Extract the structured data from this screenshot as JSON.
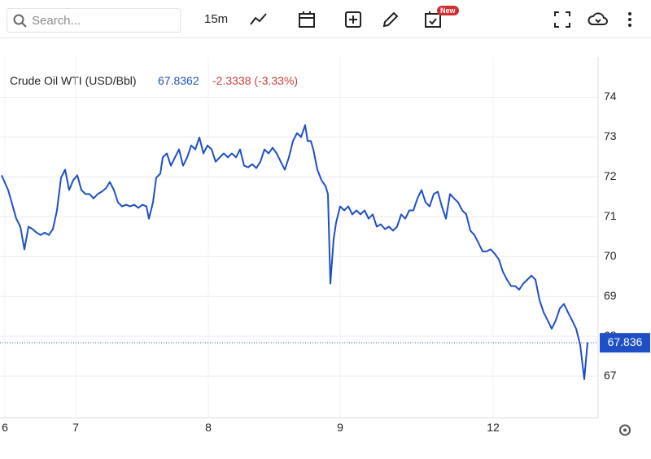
{
  "toolbar": {
    "search": "Search...",
    "interval": "15m",
    "badge": "New"
  },
  "chart_data": {
    "type": "line",
    "last": 67.8362,
    "change": "-2.3338 (-3.33%)",
    "price_label": {
      "value": 67.836,
      "label": "67.836"
    },
    "grid": true,
    "xlim": [
      0,
      147
    ],
    "ylim": [
      65.95,
      75.0
    ],
    "xticks": [
      {
        "value": 1.2,
        "label": "6"
      },
      {
        "value": 18.6,
        "label": "7"
      },
      {
        "value": 51.2,
        "label": "8"
      },
      {
        "value": 83.6,
        "label": "9"
      },
      {
        "value": 121.2,
        "label": "12"
      }
    ],
    "yticks": [
      67,
      68,
      69,
      70,
      71,
      72,
      73,
      74
    ],
    "x": [
      0.4,
      2,
      4,
      5,
      6,
      7,
      8,
      9,
      10,
      11,
      12,
      13,
      14,
      15,
      16,
      17,
      18,
      19,
      20,
      21,
      22,
      23,
      24,
      25,
      26,
      27,
      28,
      29,
      30,
      31,
      32,
      33,
      34,
      35,
      36,
      36.6,
      37.6,
      38.4,
      39.4,
      40,
      41,
      42,
      43,
      44,
      45,
      46,
      47,
      48,
      49,
      50,
      51,
      52,
      53,
      54,
      55,
      56,
      57,
      58,
      59,
      60,
      61,
      62,
      63,
      64,
      65,
      66,
      67,
      68,
      69,
      70,
      71,
      72,
      73,
      74,
      75,
      75.6,
      76.4,
      77,
      78,
      79,
      80,
      80.6,
      81.2,
      82,
      82.6,
      83.6,
      84.6,
      85.6,
      86.6,
      87.6,
      88.6,
      89.6,
      90.6,
      91.6,
      92.6,
      93.6,
      94.6,
      95.6,
      96.6,
      97.6,
      98.6,
      99.6,
      100.6,
      101.6,
      102.6,
      103.6,
      104.6,
      105.6,
      106.6,
      107.6,
      108.6,
      109.6,
      110.6,
      111.6,
      112.6,
      113.6,
      114.6,
      115.6,
      116.6,
      117.6,
      118.6,
      119.6,
      120.6,
      121.6,
      122.6,
      123.6,
      124.6,
      125.6,
      126.6,
      127.6,
      128.6,
      129.6,
      130.6,
      131.6,
      132.6,
      133.6,
      134.6,
      135.6,
      136.6,
      137.6,
      138.6,
      139.6,
      140.6,
      141.6,
      142.6,
      143.6,
      144.4
    ],
    "series": [
      {
        "name": "Crude Oil WTI (USD/Bbl)",
        "color": "#1f4fc4",
        "values": [
          72.04,
          71.67,
          70.95,
          70.75,
          70.18,
          70.75,
          70.69,
          70.6,
          70.54,
          70.6,
          70.54,
          70.69,
          71.16,
          71.98,
          72.18,
          71.67,
          71.92,
          72.04,
          71.67,
          71.57,
          71.57,
          71.46,
          71.57,
          71.63,
          71.71,
          71.87,
          71.67,
          71.36,
          71.26,
          71.3,
          71.26,
          71.3,
          71.22,
          71.3,
          71.26,
          70.95,
          71.36,
          71.98,
          72.08,
          72.49,
          72.59,
          72.28,
          72.49,
          72.69,
          72.28,
          72.49,
          72.79,
          72.69,
          72.99,
          72.59,
          72.79,
          72.69,
          72.38,
          72.49,
          72.59,
          72.49,
          72.59,
          72.49,
          72.69,
          72.28,
          72.24,
          72.32,
          72.22,
          72.38,
          72.69,
          72.59,
          72.73,
          72.59,
          72.38,
          72.18,
          72.49,
          72.9,
          73.1,
          73.0,
          73.3,
          72.9,
          72.9,
          72.69,
          72.18,
          71.92,
          71.77,
          71.57,
          69.32,
          70.44,
          70.85,
          71.26,
          71.16,
          71.26,
          71.06,
          71.16,
          71.06,
          71.16,
          70.95,
          71.06,
          70.75,
          70.81,
          70.69,
          70.75,
          70.65,
          70.75,
          71.06,
          70.95,
          71.16,
          71.16,
          71.46,
          71.67,
          71.36,
          71.26,
          71.57,
          71.63,
          71.26,
          70.95,
          71.57,
          71.46,
          71.36,
          71.16,
          71.06,
          70.65,
          70.54,
          70.34,
          70.13,
          70.13,
          70.18,
          70.07,
          69.93,
          69.62,
          69.42,
          69.26,
          69.26,
          69.17,
          69.32,
          69.42,
          69.52,
          69.42,
          68.91,
          68.6,
          68.4,
          68.19,
          68.4,
          68.7,
          68.81,
          68.6,
          68.4,
          68.19,
          67.78,
          66.92,
          67.84
        ]
      }
    ]
  }
}
